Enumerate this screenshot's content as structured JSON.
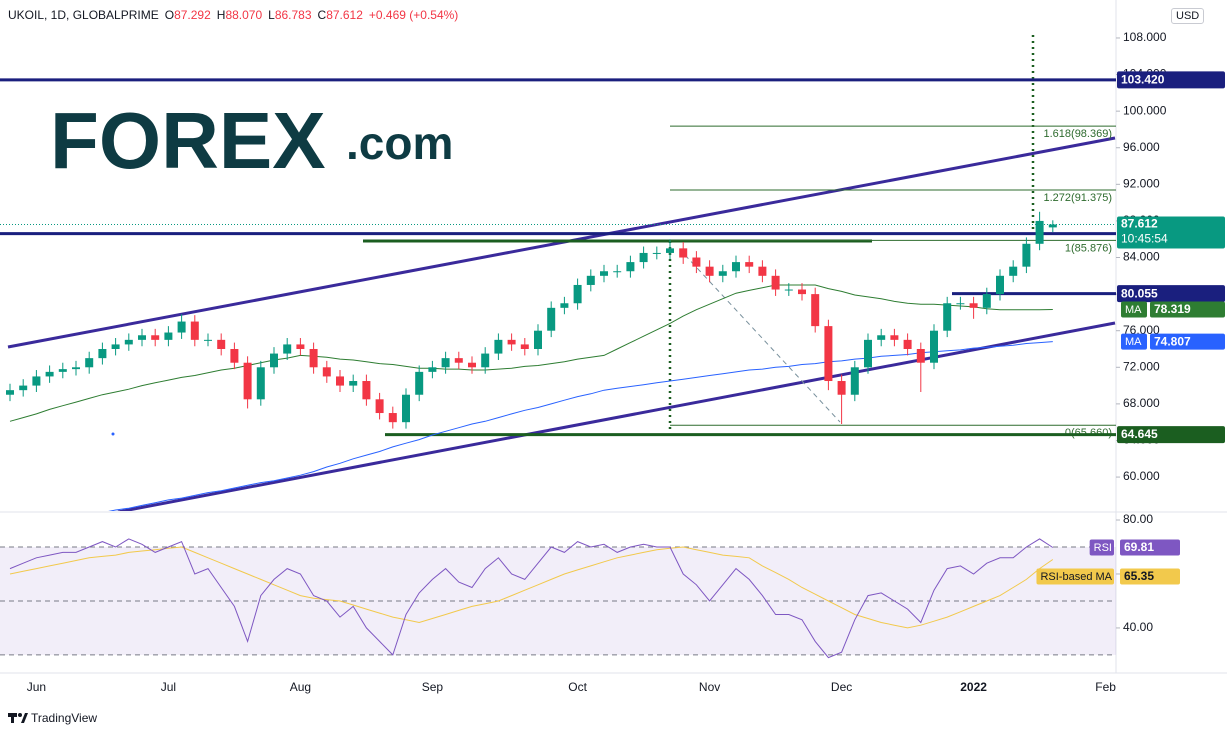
{
  "header": {
    "symbol": "UKOIL, 1D, GLOBALPRIME",
    "ohlc": [
      {
        "label": "O",
        "value": "87.292"
      },
      {
        "label": "H",
        "value": "88.070"
      },
      {
        "label": "L",
        "value": "86.783"
      },
      {
        "label": "C",
        "value": "87.612"
      }
    ],
    "change": "+0.469 (+0.54%)",
    "currency": "USD"
  },
  "logo": {
    "brand": "FOREX",
    "suffix": ".com"
  },
  "footer": "TradingView",
  "chart_data": [
    {
      "type": "candlestick",
      "up_color": "#089981",
      "down_color": "#f23645",
      "ylim": [
        56.4,
        112.15
      ],
      "yticks": [
        {
          "value": 108,
          "label": "108.000"
        },
        {
          "value": 104,
          "label": "104.000"
        },
        {
          "value": 100,
          "label": "100.000"
        },
        {
          "value": 96,
          "label": "96.000"
        },
        {
          "value": 92,
          "label": "92.000"
        },
        {
          "value": 88,
          "label": "88.000"
        },
        {
          "value": 84,
          "label": "84.000"
        },
        {
          "value": 80,
          "label": "80.000"
        },
        {
          "value": 76,
          "label": "76.000"
        },
        {
          "value": 72,
          "label": "72.000"
        },
        {
          "value": 68,
          "label": "68.000"
        },
        {
          "value": 64,
          "label": "64.000"
        },
        {
          "value": 60,
          "label": "60.000"
        }
      ],
      "open": [
        69,
        69.5,
        70,
        71,
        71.5,
        71.8,
        72,
        73,
        74,
        74.5,
        75,
        75.5,
        75,
        75.8,
        77,
        75,
        75,
        74,
        72.5,
        68.5,
        72,
        73.5,
        74.5,
        74,
        72,
        71,
        70,
        70.5,
        68.5,
        67,
        66,
        69,
        71.5,
        72,
        73,
        72.5,
        72,
        73.5,
        75,
        74.5,
        74,
        76,
        78.5,
        79,
        81,
        82,
        82.5,
        82.5,
        83.5,
        84.5,
        84.5,
        85,
        84,
        83,
        82,
        82.5,
        83.5,
        83,
        82,
        80.5,
        80.5,
        80,
        76.5,
        70.5,
        69,
        72,
        75,
        75.5,
        75,
        74,
        72.5,
        76,
        79,
        79,
        78.5,
        80,
        82,
        83,
        85.5,
        87.292,
        null,
        null,
        null,
        null,
        null,
        null
      ],
      "high": [
        70.2,
        70.7,
        71.7,
        72.2,
        72.5,
        72.7,
        73.7,
        74.7,
        75.2,
        75.7,
        76.2,
        76.2,
        76.5,
        77.8,
        77.7,
        75.7,
        75.7,
        74.7,
        73.2,
        72.7,
        74.2,
        75.2,
        75.2,
        74.7,
        72.7,
        71.7,
        71.2,
        71.2,
        69.2,
        67.7,
        69.7,
        72.2,
        72.7,
        73.7,
        73.7,
        73.2,
        74.2,
        75.7,
        75.7,
        75.2,
        76.7,
        79.2,
        79.7,
        81.7,
        82.7,
        83.2,
        83.2,
        84.2,
        85.2,
        85.2,
        86,
        85.7,
        84.7,
        83.7,
        83.2,
        84.2,
        84.2,
        83.7,
        82.7,
        81.2,
        81.2,
        80.7,
        77.2,
        71.2,
        72.7,
        75.7,
        76.2,
        76.2,
        75.7,
        74.7,
        76.7,
        79.7,
        79.7,
        79.7,
        80.7,
        82.7,
        83.7,
        86.2,
        89,
        88.07,
        null,
        null,
        null,
        null,
        null,
        null
      ],
      "low": [
        68.3,
        68.8,
        69.3,
        70.3,
        70.8,
        71.1,
        71.3,
        72.3,
        73.3,
        73.8,
        74.3,
        74.3,
        74.3,
        75.1,
        74.3,
        74.3,
        73.3,
        71.8,
        67.5,
        67.8,
        71.3,
        72.8,
        73.3,
        71.3,
        70.3,
        69.3,
        69.3,
        67.8,
        66.3,
        65.3,
        65.3,
        68.3,
        70.8,
        71.3,
        71.8,
        71.3,
        71.3,
        72.8,
        73.8,
        73.3,
        73.3,
        75.3,
        77.8,
        78.3,
        80.3,
        81.3,
        81.8,
        81.8,
        82.8,
        83.8,
        83.8,
        83.3,
        82.3,
        81.3,
        81.3,
        81.8,
        82.3,
        81.3,
        79.8,
        79.8,
        79.3,
        75.8,
        69.5,
        65.8,
        68.3,
        71.3,
        74.3,
        74.3,
        73.3,
        69.3,
        71.8,
        75.3,
        78.3,
        77.3,
        77.8,
        79.3,
        81.3,
        82.3,
        84.8,
        86.783,
        null,
        null,
        null,
        null,
        null,
        null
      ],
      "close": [
        69.5,
        70,
        71,
        71.5,
        71.8,
        72,
        73,
        74,
        74.5,
        75,
        75.5,
        75,
        75.8,
        77,
        75,
        75,
        74,
        72.5,
        68.5,
        72,
        73.5,
        74.5,
        74,
        72,
        71,
        70,
        70.5,
        68.5,
        67,
        66,
        69,
        71.5,
        72,
        73,
        72.5,
        72,
        73.5,
        75,
        74.5,
        74,
        76,
        78.5,
        79,
        81,
        82,
        82.5,
        82.5,
        83.5,
        84.5,
        84.5,
        85,
        84,
        83,
        82,
        82.5,
        83.5,
        83,
        82,
        80.5,
        80.5,
        80,
        76.5,
        70.5,
        69,
        72,
        75,
        75.5,
        75,
        74,
        72.5,
        76,
        79,
        79,
        78.5,
        80,
        82,
        83,
        85.5,
        88,
        87.612,
        null,
        null,
        null,
        null,
        null,
        null
      ],
      "last_price": {
        "value": 87.612,
        "label": "87.612",
        "countdown": "10:45:54",
        "color": "#089981"
      },
      "series": [
        {
          "name": "MA",
          "color": "#2e7d32",
          "badge": "78.319",
          "values": [
            66.1,
            66.5,
            66.9,
            67.4,
            67.8,
            68.2,
            68.6,
            69,
            69.3,
            69.6,
            70,
            70.3,
            70.6,
            70.9,
            71.1,
            71.4,
            71.7,
            71.9,
            72.2,
            72.5,
            72.8,
            73,
            73.3,
            73.2,
            73.1,
            72.9,
            72.8,
            72.6,
            72.4,
            72.3,
            72.1,
            71.9,
            71.9,
            71.8,
            71.8,
            71.7,
            71.7,
            71.8,
            71.9,
            72.1,
            72.2,
            72.4,
            72.6,
            72.9,
            73.1,
            73.3,
            74,
            74.7,
            75.4,
            76.1,
            76.8,
            77.6,
            78.3,
            78.9,
            79.5,
            80.1,
            80.4,
            80.7,
            81,
            81,
            81,
            81,
            80.6,
            80.3,
            79.9,
            79.7,
            79.5,
            79.2,
            79,
            78.9,
            78.9,
            78.8,
            78.7,
            78.6,
            78.4,
            78.3,
            78.3,
            78.3,
            78.3,
            78.319,
            null,
            null,
            null,
            null,
            null,
            null
          ]
        },
        {
          "name": "MA",
          "color": "#2962ff",
          "badge": "74.807",
          "values": [
            null,
            null,
            null,
            null,
            null,
            null,
            55.8,
            56.1,
            56.4,
            56.6,
            56.9,
            57.2,
            57.5,
            57.7,
            58,
            58.3,
            58.5,
            58.8,
            59.1,
            59.4,
            59.6,
            59.9,
            60.2,
            60.6,
            61.1,
            61.5,
            62,
            62.4,
            62.8,
            63.3,
            63.7,
            64.1,
            64.6,
            65,
            65.4,
            65.8,
            66.1,
            66.5,
            66.9,
            67.3,
            67.6,
            68,
            68.4,
            68.8,
            69.1,
            69.5,
            69.7,
            69.9,
            70.1,
            70.3,
            70.5,
            70.7,
            70.9,
            71.1,
            71.3,
            71.5,
            71.7,
            71.8,
            72,
            72.1,
            72.3,
            72.4,
            72.6,
            72.7,
            72.9,
            73,
            73.2,
            73.3,
            73.4,
            73.6,
            73.7,
            73.8,
            73.9,
            74.1,
            74.2,
            74.3,
            74.4,
            74.6,
            74.7,
            74.807,
            null,
            null,
            null,
            null,
            null,
            null
          ]
        }
      ],
      "levels": [
        {
          "value": 103.42,
          "label": "103.420",
          "color": "#1a1f7e"
        },
        {
          "value": 86.61,
          "label": "86.610",
          "color": "#1a1f7e"
        },
        {
          "value": 80.055,
          "label": "80.055",
          "color": "#1a1f7e"
        },
        {
          "value": 64.645,
          "label": "64.645",
          "color": "#1b5e20"
        }
      ],
      "fib_levels": [
        {
          "value": 98.369,
          "label": "1.618(98.369)"
        },
        {
          "value": 91.375,
          "label": "1.272(91.375)"
        },
        {
          "value": 85.876,
          "label": "1(85.876)"
        },
        {
          "value": 65.66,
          "label": "0(65.660)"
        }
      ],
      "fib_color": "#2e6b2e"
    },
    {
      "type": "line",
      "categories": [
        null,
        null,
        "Jun",
        null,
        null,
        null,
        null,
        null,
        null,
        null,
        null,
        null,
        "Jul",
        null,
        null,
        null,
        null,
        null,
        null,
        null,
        null,
        null,
        "Aug",
        null,
        null,
        null,
        null,
        null,
        null,
        null,
        null,
        null,
        "Sep",
        null,
        null,
        null,
        null,
        null,
        null,
        null,
        null,
        null,
        null,
        "Oct",
        null,
        null,
        null,
        null,
        null,
        null,
        null,
        null,
        null,
        "Nov",
        null,
        null,
        null,
        null,
        null,
        null,
        null,
        null,
        null,
        "Dec",
        null,
        null,
        null,
        null,
        null,
        null,
        null,
        null,
        null,
        "2022",
        null,
        null,
        null,
        null,
        null,
        null,
        null,
        null,
        null,
        "Feb",
        null,
        null
      ],
      "ylim": [
        23.3,
        82.6
      ],
      "yticks": [
        {
          "value": 80,
          "label": "80.00"
        },
        {
          "value": 60,
          "label": "60.00"
        },
        {
          "value": 40,
          "label": "40.00"
        }
      ],
      "levels": [
        70,
        50,
        30
      ],
      "band_color": "#7e57c2",
      "series": [
        {
          "name": "RSI",
          "color": "#7e57c2",
          "badge": "69.81",
          "values": [
            62,
            64,
            66,
            67,
            68,
            68,
            70,
            72,
            70,
            73,
            71,
            68,
            70,
            72,
            60,
            62,
            55,
            48,
            35,
            52,
            58,
            62,
            60,
            52,
            50,
            44,
            48,
            40,
            35,
            30,
            45,
            53,
            58,
            62,
            57,
            55,
            62,
            66,
            60,
            58,
            64,
            70,
            68,
            72,
            70,
            71,
            68,
            70,
            71,
            70,
            70,
            60,
            56,
            50,
            56,
            62,
            58,
            52,
            45,
            45,
            43,
            35,
            29,
            31,
            43,
            52,
            53,
            50,
            47,
            42,
            54,
            62,
            63,
            60,
            64,
            66,
            66,
            70,
            73,
            69.81,
            null,
            null,
            null,
            null,
            null,
            null
          ]
        },
        {
          "name": "RSI-based MA",
          "color": "#f2c94c",
          "badge": "65.35",
          "values": [
            60,
            61,
            62,
            63,
            64,
            65,
            66,
            66.5,
            67,
            68,
            68.5,
            69,
            69.5,
            70,
            68,
            66,
            64,
            62,
            60,
            58,
            56,
            54,
            52,
            51,
            50.5,
            50,
            48.5,
            47,
            45.5,
            44,
            43,
            42,
            43.5,
            45,
            46.5,
            48,
            49,
            50,
            52,
            54,
            56,
            58,
            60,
            61.5,
            63,
            64.5,
            66,
            67,
            68,
            69,
            69.5,
            70,
            69,
            68,
            67,
            66.5,
            66,
            63,
            60.5,
            58,
            55,
            52.5,
            50,
            47.5,
            45,
            43.5,
            42,
            41,
            40,
            41,
            42.5,
            44,
            46,
            48,
            50,
            52,
            55,
            58,
            62,
            65.35,
            null,
            null,
            null,
            null,
            null,
            null
          ]
        }
      ]
    }
  ]
}
